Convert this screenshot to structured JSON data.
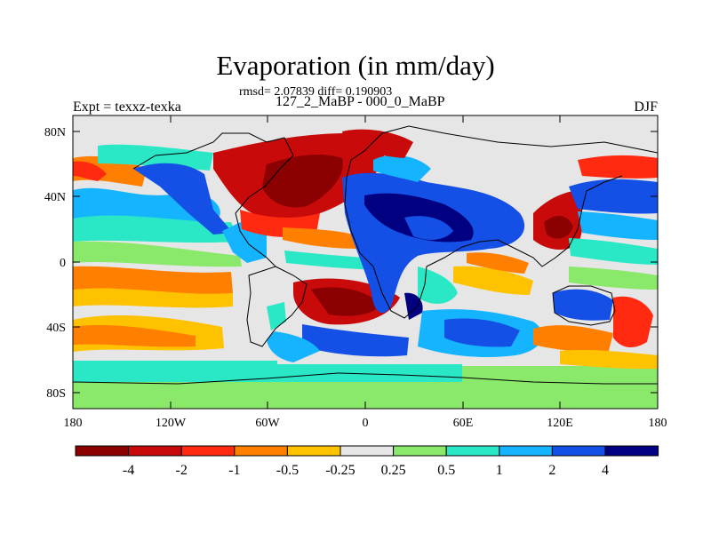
{
  "title": "Evaporation (in mm/day)",
  "stats": "rmsd= 2.07839 diff= 0.190903",
  "experiment": "Expt = texxz-texka",
  "period": "127_2_MaBP - 000_0_MaBP",
  "season": "DJF",
  "axes": {
    "lat_ticks": [
      "80N",
      "40N",
      "0",
      "40S",
      "80S"
    ],
    "lon_ticks": [
      "180",
      "120W",
      "60W",
      "0",
      "60E",
      "120E",
      "180"
    ]
  },
  "colorbar": {
    "colors": [
      "#8b0000",
      "#c80a0a",
      "#ff2a10",
      "#ff8000",
      "#ffc200",
      "#e6e6e6",
      "#8ae86a",
      "#2ae8c6",
      "#14b4ff",
      "#1450e6",
      "#000080"
    ],
    "labels": [
      "-4",
      "-2",
      "-1",
      "-0.5",
      "-0.25",
      "0.25",
      "0.5",
      "1",
      "2",
      "4"
    ]
  }
}
